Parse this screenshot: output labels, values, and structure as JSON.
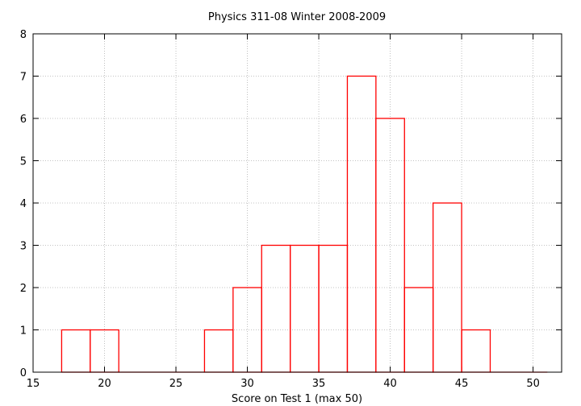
{
  "chart_data": {
    "type": "bar",
    "title": "Physics 311-08 Winter 2008-2009",
    "xlabel": "Score on Test 1 (max 50)",
    "ylabel": "",
    "xlim": [
      15,
      52
    ],
    "ylim": [
      0,
      8
    ],
    "xticks": [
      "15",
      "20",
      "25",
      "30",
      "35",
      "40",
      "45",
      "50"
    ],
    "yticks": [
      "0",
      "1",
      "2",
      "3",
      "4",
      "5",
      "6",
      "7",
      "8"
    ],
    "grid": true,
    "bin_width": 2,
    "bar_color": "#ff0000",
    "bins": [
      {
        "start": 17,
        "end": 19,
        "count": 1
      },
      {
        "start": 19,
        "end": 21,
        "count": 1
      },
      {
        "start": 21,
        "end": 23,
        "count": 0
      },
      {
        "start": 23,
        "end": 25,
        "count": 0
      },
      {
        "start": 25,
        "end": 27,
        "count": 0
      },
      {
        "start": 27,
        "end": 29,
        "count": 1
      },
      {
        "start": 29,
        "end": 31,
        "count": 2
      },
      {
        "start": 31,
        "end": 33,
        "count": 3
      },
      {
        "start": 33,
        "end": 35,
        "count": 3
      },
      {
        "start": 35,
        "end": 37,
        "count": 3
      },
      {
        "start": 37,
        "end": 39,
        "count": 7
      },
      {
        "start": 39,
        "end": 41,
        "count": 6
      },
      {
        "start": 41,
        "end": 43,
        "count": 2
      },
      {
        "start": 43,
        "end": 45,
        "count": 4
      },
      {
        "start": 45,
        "end": 47,
        "count": 1
      },
      {
        "start": 47,
        "end": 49,
        "count": 0
      },
      {
        "start": 49,
        "end": 51,
        "count": 0
      }
    ]
  }
}
